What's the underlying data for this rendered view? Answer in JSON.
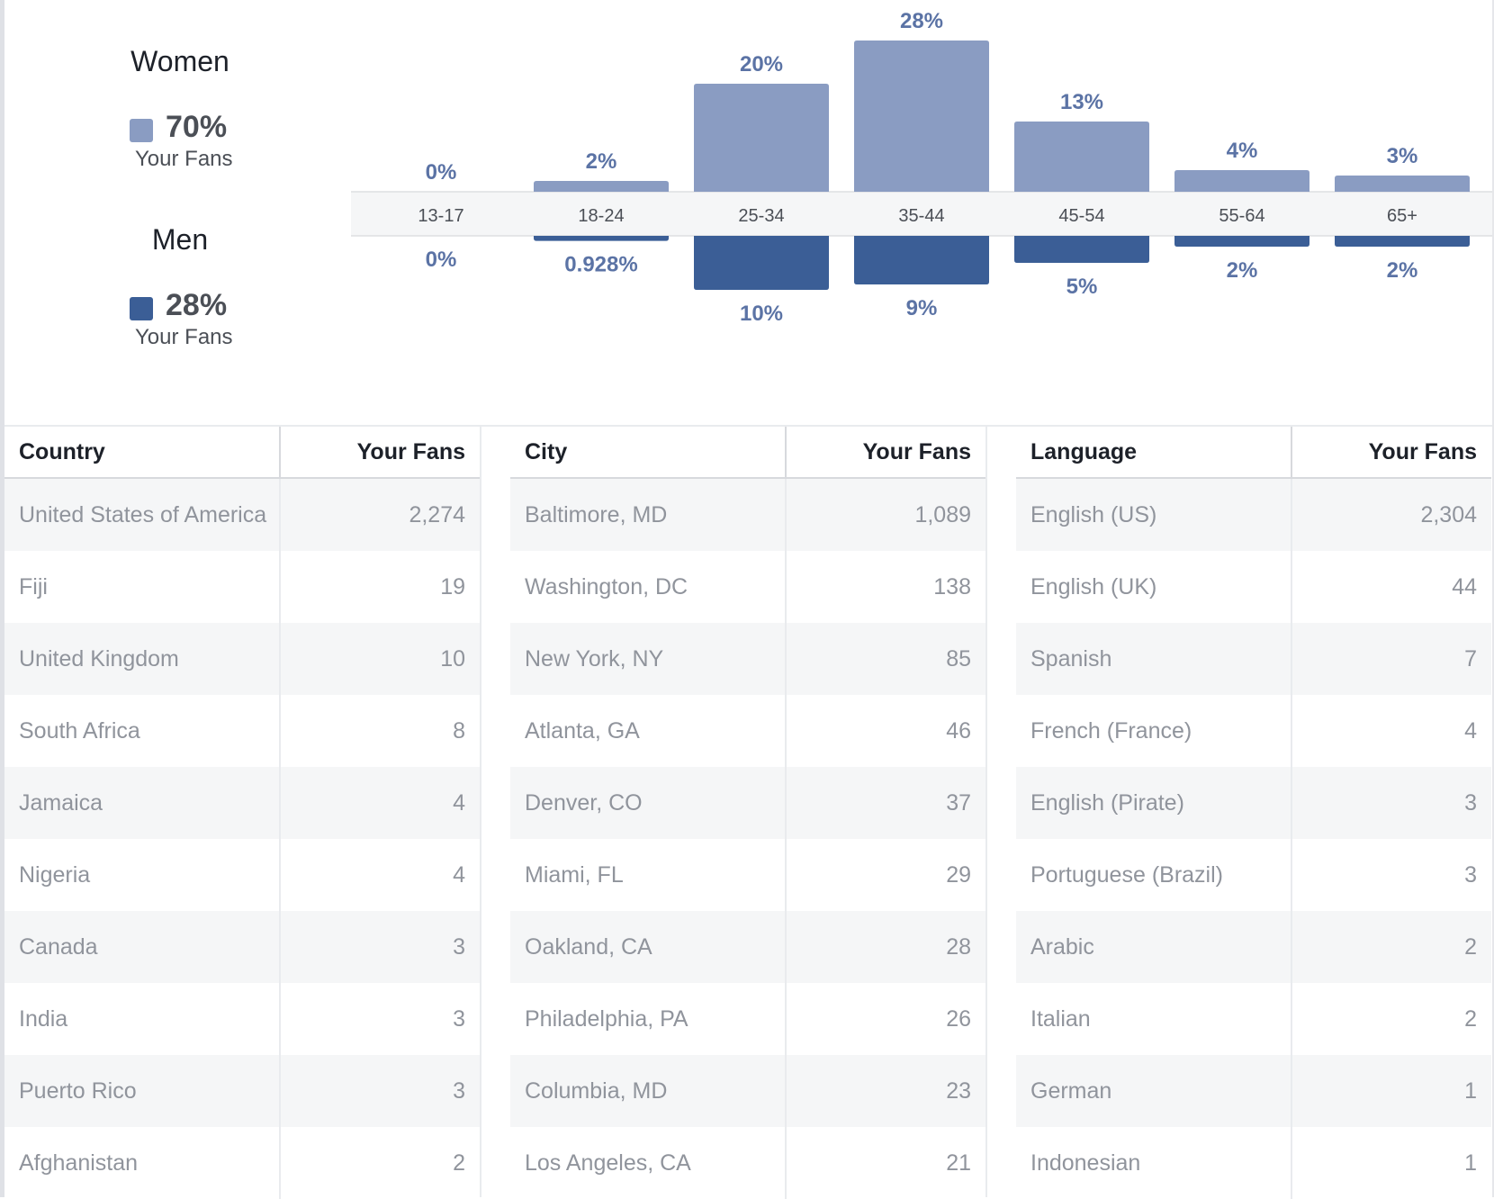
{
  "colors": {
    "women": "#8a9cc2",
    "men": "#3b5e96",
    "label": "#5b73a5",
    "axis_band": "#f5f6f7"
  },
  "legend": {
    "women": {
      "title": "Women",
      "pct": "70%",
      "sub": "Your Fans"
    },
    "men": {
      "title": "Men",
      "pct": "28%",
      "sub": "Your Fans"
    }
  },
  "chart_data": {
    "type": "bar",
    "categories": [
      "13-17",
      "18-24",
      "25-34",
      "35-44",
      "45-54",
      "55-64",
      "65+"
    ],
    "series": [
      {
        "name": "Women",
        "values": [
          0,
          2,
          20,
          28,
          13,
          4,
          3
        ],
        "labels": [
          "0%",
          "2%",
          "20%",
          "28%",
          "13%",
          "4%",
          "3%"
        ]
      },
      {
        "name": "Men",
        "values": [
          0,
          0.928,
          10,
          9,
          5,
          2,
          2
        ],
        "labels": [
          "0%",
          "0.928%",
          "10%",
          "9%",
          "5%",
          "2%",
          "2%"
        ]
      }
    ]
  },
  "tables": [
    {
      "header": [
        "Country",
        "Your Fans"
      ],
      "rows": [
        [
          "United States of America",
          "2,274"
        ],
        [
          "Fiji",
          "19"
        ],
        [
          "United Kingdom",
          "10"
        ],
        [
          "South Africa",
          "8"
        ],
        [
          "Jamaica",
          "4"
        ],
        [
          "Nigeria",
          "4"
        ],
        [
          "Canada",
          "3"
        ],
        [
          "India",
          "3"
        ],
        [
          "Puerto Rico",
          "3"
        ],
        [
          "Afghanistan",
          "2"
        ]
      ]
    },
    {
      "header": [
        "City",
        "Your Fans"
      ],
      "rows": [
        [
          "Baltimore, MD",
          "1,089"
        ],
        [
          "Washington, DC",
          "138"
        ],
        [
          "New York, NY",
          "85"
        ],
        [
          "Atlanta, GA",
          "46"
        ],
        [
          "Denver, CO",
          "37"
        ],
        [
          "Miami, FL",
          "29"
        ],
        [
          "Oakland, CA",
          "28"
        ],
        [
          "Philadelphia, PA",
          "26"
        ],
        [
          "Columbia, MD",
          "23"
        ],
        [
          "Los Angeles, CA",
          "21"
        ]
      ]
    },
    {
      "header": [
        "Language",
        "Your Fans"
      ],
      "rows": [
        [
          "English (US)",
          "2,304"
        ],
        [
          "English (UK)",
          "44"
        ],
        [
          "Spanish",
          "7"
        ],
        [
          "French (France)",
          "4"
        ],
        [
          "English (Pirate)",
          "3"
        ],
        [
          "Portuguese (Brazil)",
          "3"
        ],
        [
          "Arabic",
          "2"
        ],
        [
          "Italian",
          "2"
        ],
        [
          "German",
          "1"
        ],
        [
          "Indonesian",
          "1"
        ]
      ]
    }
  ]
}
